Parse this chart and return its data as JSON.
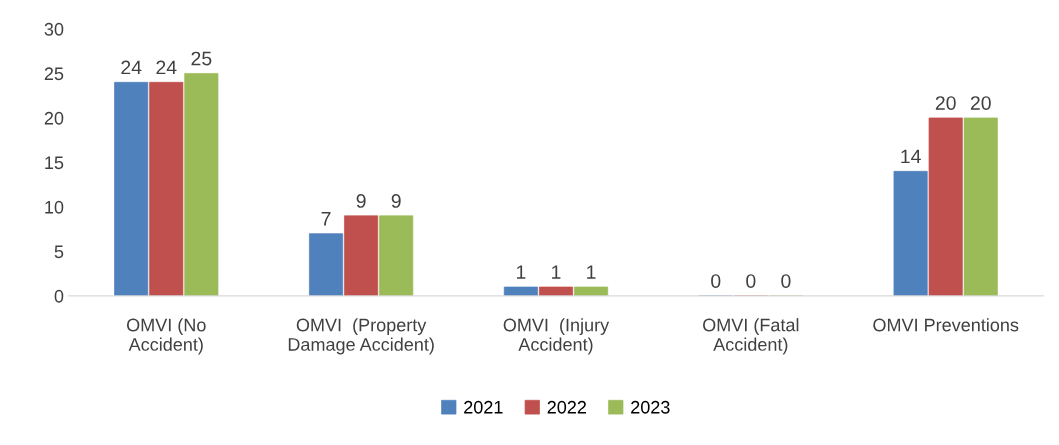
{
  "chart_data": {
    "type": "bar",
    "categories": [
      "OMVI (No\nAccident)",
      "OMVI  (Property\nDamage Accident)",
      "OMVI  (Injury\nAccident)",
      "OMVI (Fatal\nAccident)",
      "OMVI Preventions"
    ],
    "series": [
      {
        "name": "2021",
        "color": "#4f81bd",
        "values": [
          24,
          7,
          1,
          0,
          14
        ]
      },
      {
        "name": "2022",
        "color": "#c0504d",
        "values": [
          24,
          9,
          1,
          0,
          20
        ]
      },
      {
        "name": "2023",
        "color": "#9bbb59",
        "values": [
          25,
          9,
          1,
          0,
          20
        ]
      }
    ],
    "ylim": [
      0,
      30
    ],
    "yticks": [
      0,
      5,
      10,
      15,
      20,
      25,
      30
    ],
    "data_labels": true,
    "grid": false,
    "legend": "bottom"
  }
}
